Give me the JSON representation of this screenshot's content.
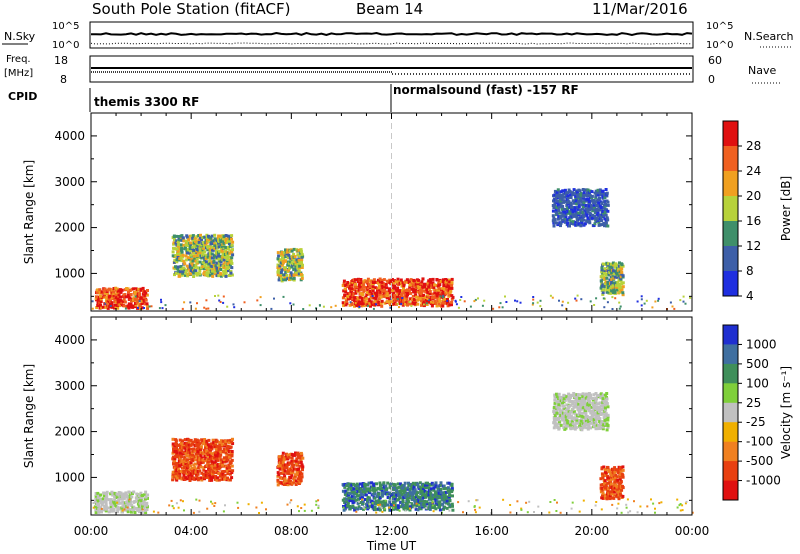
{
  "header": {
    "title": "South Pole Station (fitACF)",
    "beam": "Beam 14",
    "date": "11/Mar/2016"
  },
  "status_panels": {
    "nsky_label": "N.Sky",
    "nsky_top": "10^5",
    "nsky_bottom": "10^0",
    "nsearch_label": "N.Search",
    "nsearch_top": "10^5",
    "nsearch_bottom": "10^0",
    "freq_label_1": "Freq.",
    "freq_label_2": "[MHz]",
    "freq_top": "18",
    "freq_bottom": "8",
    "nave_label": "Nave",
    "nave_top": "60",
    "nave_bottom": "0",
    "cpid_label": "CPID",
    "cpid_1": "themis 3300 RF",
    "cpid_2": "normalsound (fast) -157 RF"
  },
  "chart_data": [
    {
      "type": "heatmap",
      "title": "",
      "xlabel": "Time UT",
      "ylabel": "Slant Range [km]",
      "ytick_labels": [
        "1000",
        "2000",
        "3000",
        "4000"
      ],
      "xtick_labels": [
        "00:00",
        "04:00",
        "08:00",
        "12:00",
        "16:00",
        "20:00",
        "00:00"
      ],
      "xlim_hours": [
        0,
        24
      ],
      "ylim_km": [
        180,
        4500
      ],
      "colorbar_label": "Power [dB]",
      "colorbar_ticks": [
        "4",
        "8",
        "12",
        "16",
        "20",
        "24",
        "28"
      ],
      "colorbar_colors": [
        "#1f2fe0",
        "#3d5fa8",
        "#3f8f6a",
        "#b7d23a",
        "#f0a020",
        "#f06020",
        "#e01010"
      ],
      "regions": [
        {
          "t0": 0.1,
          "t1": 2.2,
          "r0": 200,
          "r1": 650,
          "level": "high"
        },
        {
          "t0": 3.2,
          "t1": 5.6,
          "r0": 900,
          "r1": 1800,
          "level": "mid"
        },
        {
          "t0": 7.4,
          "t1": 8.4,
          "r0": 800,
          "r1": 1500,
          "level": "mid"
        },
        {
          "t0": 10.0,
          "t1": 14.4,
          "r0": 250,
          "r1": 850,
          "level": "high"
        },
        {
          "t0": 18.4,
          "t1": 20.6,
          "r0": 2000,
          "r1": 2800,
          "level": "low"
        },
        {
          "t0": 20.3,
          "t1": 21.2,
          "r0": 500,
          "r1": 1200,
          "level": "mid"
        }
      ]
    },
    {
      "type": "heatmap",
      "title": "",
      "xlabel": "Time UT",
      "ylabel": "Slant Range [km]",
      "ytick_labels": [
        "1000",
        "2000",
        "3000",
        "4000"
      ],
      "xtick_labels": [
        "00:00",
        "04:00",
        "08:00",
        "12:00",
        "16:00",
        "20:00",
        "00:00"
      ],
      "xlim_hours": [
        0,
        24
      ],
      "ylim_km": [
        180,
        4500
      ],
      "colorbar_label": "Velocity [m s⁻¹]",
      "colorbar_ticks": [
        "1000",
        "500",
        "100",
        "25",
        "-25",
        "-100",
        "-500",
        "-1000"
      ],
      "colorbar_colors": [
        "#1f2fd0",
        "#3f6fa0",
        "#3f8f5a",
        "#7fcf3a",
        "#c0c0c0",
        "#f0b000",
        "#f08020",
        "#e84010",
        "#e01010"
      ],
      "regions": [
        {
          "t0": 0.1,
          "t1": 2.2,
          "r0": 200,
          "r1": 650,
          "level": "ground"
        },
        {
          "t0": 3.2,
          "t1": 5.6,
          "r0": 900,
          "r1": 1800,
          "level": "negative"
        },
        {
          "t0": 7.4,
          "t1": 8.4,
          "r0": 800,
          "r1": 1500,
          "level": "negative"
        },
        {
          "t0": 10.0,
          "t1": 14.4,
          "r0": 250,
          "r1": 850,
          "level": "positive"
        },
        {
          "t0": 18.4,
          "t1": 20.6,
          "r0": 2000,
          "r1": 2800,
          "level": "ground"
        },
        {
          "t0": 20.3,
          "t1": 21.2,
          "r0": 500,
          "r1": 1200,
          "level": "negative"
        }
      ]
    }
  ]
}
